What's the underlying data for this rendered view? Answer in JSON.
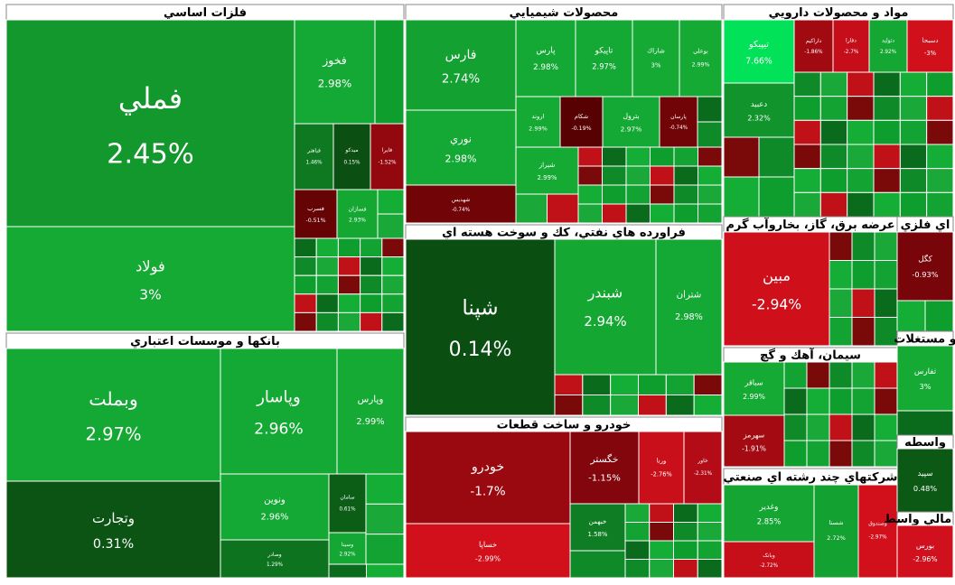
{
  "chart_data": {
    "type": "treemap",
    "sectors": [
      {
        "name": "فلزات اساسي",
        "categories": [
          "فملي",
          "فولاد",
          "فخوز",
          "فباهنر",
          "ميدكو",
          "فايرا",
          "فسرب",
          "فسازان"
        ],
        "values": [
          2.45,
          3,
          2.98,
          1.46,
          0.15,
          -1.52,
          -0.51,
          2.93
        ],
        "value_labels": [
          "2.45%",
          "3%",
          "2.98%",
          "1.46%",
          "0.15%",
          "-1.52%",
          "-0.51%",
          "2.93%"
        ]
      },
      {
        "name": "بانکها و موسسات اعتباري",
        "categories": [
          "وبملت",
          "وتجارت",
          "وپاسار",
          "وپارس",
          "ونوين",
          "وصادر",
          "سامان",
          "وسينا"
        ],
        "values": [
          2.97,
          0.31,
          2.96,
          2.99,
          2.96,
          1.29,
          0.61,
          2.92
        ],
        "value_labels": [
          "2.97%",
          "0.31%",
          "2.96%",
          "2.99%",
          "2.96%",
          "1.29%",
          "0.61%",
          "2.92%"
        ]
      },
      {
        "name": "محصولات شيميايي",
        "categories": [
          "فارس",
          "نوري",
          "شهديس",
          "پارس",
          "تاپيكو",
          "شاراك",
          "بوعلي",
          "اروند",
          "شكام",
          "بترول",
          "پارسان",
          "شيراز"
        ],
        "values": [
          2.74,
          2.98,
          -0.74,
          2.98,
          2.97,
          3,
          2.99,
          2.99,
          -0.19,
          2.97,
          -0.74,
          2.99
        ],
        "value_labels": [
          "2.74%",
          "2.98%",
          "-0.74%",
          "2.98%",
          "2.97%",
          "3%",
          "2.99%",
          "2.99%",
          "-0.19%",
          "2.97%",
          "-0.74%",
          "2.99%"
        ]
      },
      {
        "name": "فراورده هاي نفتي، كك و سوخت هسته اي",
        "categories": [
          "شپنا",
          "شبندر",
          "شتران"
        ],
        "values": [
          0.14,
          2.94,
          2.98
        ],
        "value_labels": [
          "0.14%",
          "2.94%",
          "2.98%"
        ]
      },
      {
        "name": "خودرو و ساخت قطعات",
        "categories": [
          "خودرو",
          "خساپا",
          "خگستر",
          "ورنا",
          "خاور",
          "خبهمن"
        ],
        "values": [
          -1.7,
          -2.99,
          -1.15,
          -2.76,
          -2.31,
          1.58
        ],
        "value_labels": [
          "-1.7%",
          "-2.99%",
          "-1.15%",
          "-2.76%",
          "-2.31%",
          "1.58%"
        ]
      },
      {
        "name": "مواد و محصولات دارويي",
        "categories": [
          "تيپيكو",
          "دعبيد",
          "داراكيم",
          "دفارا",
          "دتوليد",
          "دسبحا"
        ],
        "values": [
          7.66,
          2.32,
          -1.86,
          -2.7,
          2.92,
          -3
        ],
        "value_labels": [
          "7.66%",
          "2.32%",
          "-1.86%",
          "-2.7%",
          "2.92%",
          "-3%"
        ]
      },
      {
        "name": "عرضه برق، گاز، بخاروآب گرم",
        "categories": [
          "مبين"
        ],
        "values": [
          -2.94
        ],
        "value_labels": [
          "-2.94%"
        ]
      },
      {
        "name": "سيمان، آهك و گچ",
        "categories": [
          "سباقر",
          "سهرمز"
        ],
        "values": [
          2.99,
          -1.91
        ],
        "value_labels": [
          "2.99%",
          "-1.91%"
        ]
      },
      {
        "name": "شرکتهاي چند رشته اي صنعتي",
        "categories": [
          "وغدير",
          "وبانک",
          "شسنا",
          "وصندوق"
        ],
        "values": [
          2.85,
          -2.72,
          2.72,
          -2.97
        ],
        "value_labels": [
          "2.85%",
          "-2.72%",
          "2.72%",
          "-2.97%"
        ]
      },
      {
        "name": "اي فلزي",
        "categories": [
          "كگل"
        ],
        "values": [
          -0.93
        ],
        "value_labels": [
          "-0.93%"
        ]
      },
      {
        "name": "و مستغلات",
        "categories": [
          "ثفارس"
        ],
        "values": [
          3
        ],
        "value_labels": [
          "3%"
        ]
      },
      {
        "name": "واسطه",
        "categories": [
          "سپيد"
        ],
        "values": [
          0.48
        ],
        "value_labels": [
          "0.48%"
        ]
      },
      {
        "name": "ي مالي واسط",
        "categories": [
          "بورس"
        ],
        "values": [
          -2.96
        ],
        "value_labels": [
          "-2.96%"
        ]
      }
    ]
  }
}
